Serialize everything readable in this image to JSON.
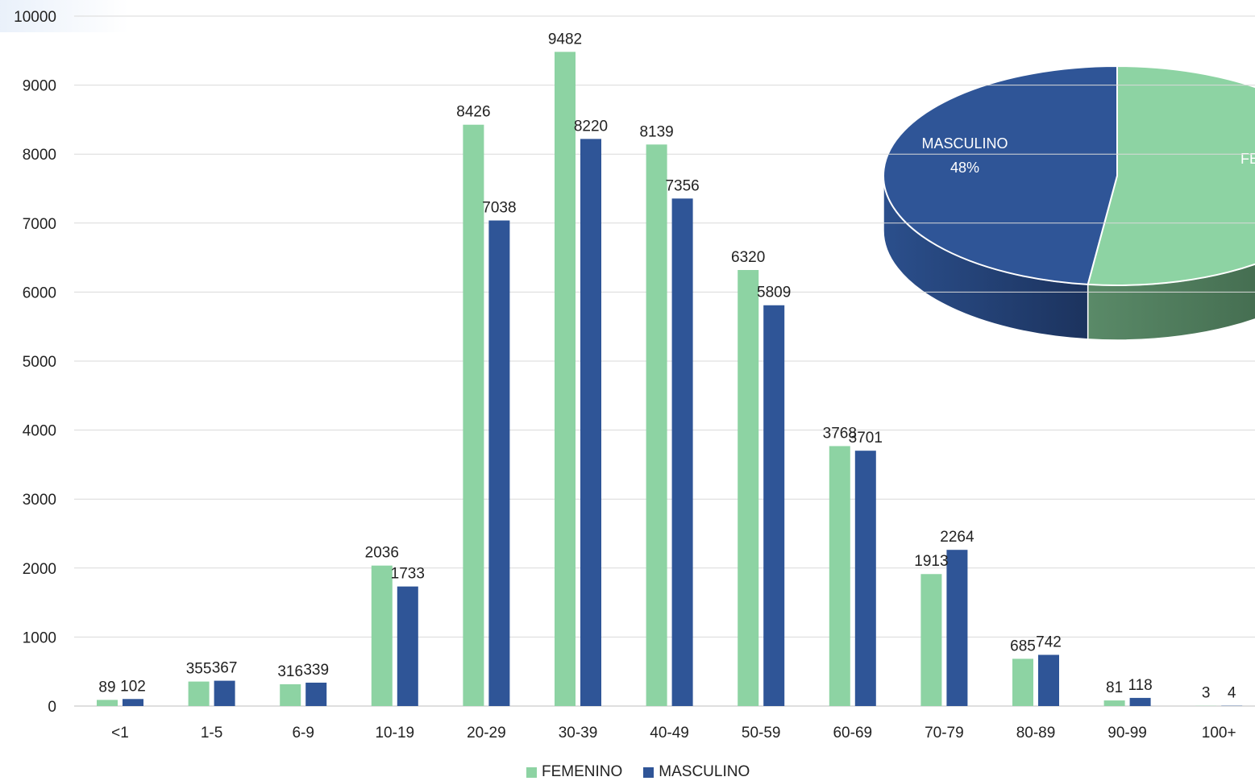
{
  "chart_data": [
    {
      "type": "bar",
      "categories": [
        "<1",
        "1-5",
        "6-9",
        "10-19",
        "20-29",
        "30-39",
        "40-49",
        "50-59",
        "60-69",
        "70-79",
        "80-89",
        "90-99",
        "100+"
      ],
      "series": [
        {
          "name": "FEMENINO",
          "color": "#8dd3a3",
          "values": [
            89,
            355,
            316,
            2036,
            8426,
            9482,
            8139,
            6320,
            3768,
            1913,
            685,
            81,
            3
          ]
        },
        {
          "name": "MASCULINO",
          "color": "#2f5597",
          "values": [
            102,
            367,
            339,
            1733,
            7038,
            8220,
            7356,
            5809,
            3701,
            2264,
            742,
            118,
            4
          ]
        }
      ],
      "ylim": [
        0,
        10000
      ],
      "yticks": [
        "0",
        "1000",
        "2000",
        "3000",
        "4000",
        "5000",
        "6000",
        "7000",
        "8000",
        "9000",
        "10000"
      ],
      "grid": true,
      "legend": "bottom-center"
    },
    {
      "type": "pie",
      "style": "3d",
      "slices": [
        {
          "label": "MASCULINO",
          "value": 48,
          "value_label": "48%",
          "color": "#2f5597"
        },
        {
          "label": "FE",
          "value": 52,
          "color": "#8dd3a3"
        }
      ]
    }
  ]
}
